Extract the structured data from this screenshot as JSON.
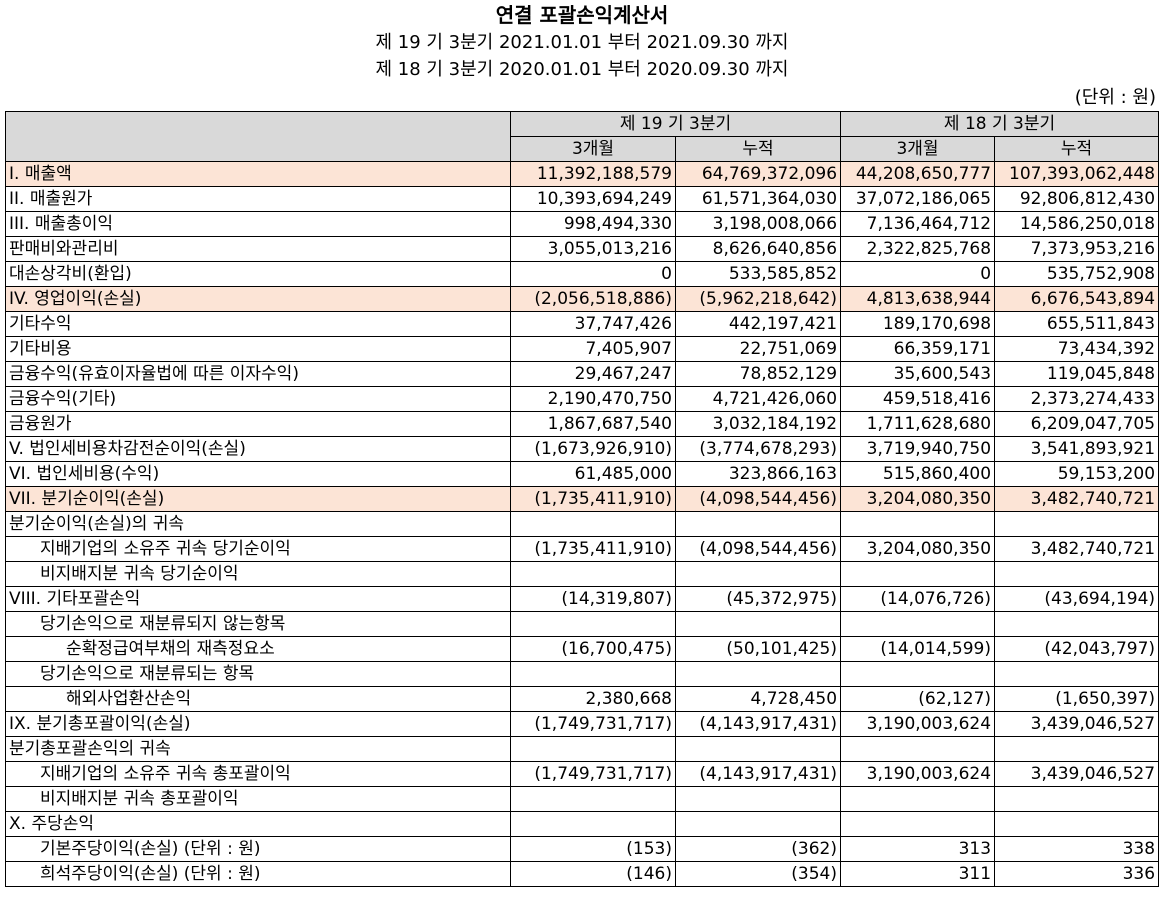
{
  "title": "연결 포괄손익계산서",
  "periods": [
    "제 19 기 3분기 2021.01.01 부터 2021.09.30 까지",
    "제 18 기 3분기 2020.01.01 부터 2020.09.30 까지"
  ],
  "unit": "(단위 : 원)",
  "header": {
    "groups": [
      "제 19 기 3분기",
      "제 18 기 3분기"
    ],
    "subs": [
      "3개월",
      "누적",
      "3개월",
      "누적"
    ]
  },
  "colors": {
    "header_bg": "#d9d9d9",
    "highlight_bg": "#fce4d6"
  },
  "rows": [
    {
      "label": "I. 매출액",
      "values": [
        "11,392,188,579",
        "64,769,372,096",
        "44,208,650,777",
        "107,393,062,448"
      ],
      "highlight": true,
      "indent": 0
    },
    {
      "label": "II. 매출원가",
      "values": [
        "10,393,694,249",
        "61,571,364,030",
        "37,072,186,065",
        "92,806,812,430"
      ],
      "highlight": false,
      "indent": 0
    },
    {
      "label": "III. 매출총이익",
      "values": [
        "998,494,330",
        "3,198,008,066",
        "7,136,464,712",
        "14,586,250,018"
      ],
      "highlight": false,
      "indent": 0
    },
    {
      "label": "판매비와관리비",
      "values": [
        "3,055,013,216",
        "8,626,640,856",
        "2,322,825,768",
        "7,373,953,216"
      ],
      "highlight": false,
      "indent": 0
    },
    {
      "label": "대손상각비(환입)",
      "values": [
        "0",
        "533,585,852",
        "0",
        "535,752,908"
      ],
      "highlight": false,
      "indent": 0
    },
    {
      "label": "IV. 영업이익(손실)",
      "values": [
        "(2,056,518,886)",
        "(5,962,218,642)",
        "4,813,638,944",
        "6,676,543,894"
      ],
      "highlight": true,
      "indent": 0
    },
    {
      "label": "기타수익",
      "values": [
        "37,747,426",
        "442,197,421",
        "189,170,698",
        "655,511,843"
      ],
      "highlight": false,
      "indent": 0
    },
    {
      "label": "기타비용",
      "values": [
        "7,405,907",
        "22,751,069",
        "66,359,171",
        "73,434,392"
      ],
      "highlight": false,
      "indent": 0
    },
    {
      "label": "금융수익(유효이자율법에 따른 이자수익)",
      "values": [
        "29,467,247",
        "78,852,129",
        "35,600,543",
        "119,045,848"
      ],
      "highlight": false,
      "indent": 0
    },
    {
      "label": "금융수익(기타)",
      "values": [
        "2,190,470,750",
        "4,721,426,060",
        "459,518,416",
        "2,373,274,433"
      ],
      "highlight": false,
      "indent": 0
    },
    {
      "label": "금융원가",
      "values": [
        "1,867,687,540",
        "3,032,184,192",
        "1,711,628,680",
        "6,209,047,705"
      ],
      "highlight": false,
      "indent": 0
    },
    {
      "label": "V. 법인세비용차감전순이익(손실)",
      "values": [
        "(1,673,926,910)",
        "(3,774,678,293)",
        "3,719,940,750",
        "3,541,893,921"
      ],
      "highlight": false,
      "indent": 0
    },
    {
      "label": "VI. 법인세비용(수익)",
      "values": [
        "61,485,000",
        "323,866,163",
        "515,860,400",
        "59,153,200"
      ],
      "highlight": false,
      "indent": 0
    },
    {
      "label": "VII. 분기순이익(손실)",
      "values": [
        "(1,735,411,910)",
        "(4,098,544,456)",
        "3,204,080,350",
        "3,482,740,721"
      ],
      "highlight": true,
      "indent": 0
    },
    {
      "label": "분기순이익(손실)의 귀속",
      "values": [
        "",
        "",
        "",
        ""
      ],
      "highlight": false,
      "indent": 0
    },
    {
      "label": "지배기업의 소유주 귀속 당기순이익",
      "values": [
        "(1,735,411,910)",
        "(4,098,544,456)",
        "3,204,080,350",
        "3,482,740,721"
      ],
      "highlight": false,
      "indent": 1
    },
    {
      "label": "비지배지분 귀속 당기순이익",
      "values": [
        "",
        "",
        "",
        ""
      ],
      "highlight": false,
      "indent": 1
    },
    {
      "label": "VIII. 기타포괄손익",
      "values": [
        "(14,319,807)",
        "(45,372,975)",
        "(14,076,726)",
        "(43,694,194)"
      ],
      "highlight": false,
      "indent": 0
    },
    {
      "label": "당기손익으로 재분류되지 않는항목",
      "values": [
        "",
        "",
        "",
        ""
      ],
      "highlight": false,
      "indent": 1
    },
    {
      "label": "순확정급여부채의 재측정요소",
      "values": [
        "(16,700,475)",
        "(50,101,425)",
        "(14,014,599)",
        "(42,043,797)"
      ],
      "highlight": false,
      "indent": 2
    },
    {
      "label": "당기손익으로 재분류되는 항목",
      "values": [
        "",
        "",
        "",
        ""
      ],
      "highlight": false,
      "indent": 1
    },
    {
      "label": "해외사업환산손익",
      "values": [
        "2,380,668",
        "4,728,450",
        "(62,127)",
        "(1,650,397)"
      ],
      "highlight": false,
      "indent": 2
    },
    {
      "label": "IX. 분기총포괄이익(손실)",
      "values": [
        "(1,749,731,717)",
        "(4,143,917,431)",
        "3,190,003,624",
        "3,439,046,527"
      ],
      "highlight": false,
      "indent": 0
    },
    {
      "label": "분기총포괄손익의 귀속",
      "values": [
        "",
        "",
        "",
        ""
      ],
      "highlight": false,
      "indent": 0
    },
    {
      "label": "지배기업의 소유주 귀속 총포괄이익",
      "values": [
        "(1,749,731,717)",
        "(4,143,917,431)",
        "3,190,003,624",
        "3,439,046,527"
      ],
      "highlight": false,
      "indent": 1
    },
    {
      "label": "비지배지분 귀속 총포괄이익",
      "values": [
        "",
        "",
        "",
        ""
      ],
      "highlight": false,
      "indent": 1
    },
    {
      "label": "X. 주당손익",
      "values": [
        "",
        "",
        "",
        ""
      ],
      "highlight": false,
      "indent": 0
    },
    {
      "label": "기본주당이익(손실) (단위 : 원)",
      "values": [
        "(153)",
        "(362)",
        "313",
        "338"
      ],
      "highlight": false,
      "indent": 1
    },
    {
      "label": "희석주당이익(손실) (단위 : 원)",
      "values": [
        "(146)",
        "(354)",
        "311",
        "336"
      ],
      "highlight": false,
      "indent": 1
    }
  ]
}
